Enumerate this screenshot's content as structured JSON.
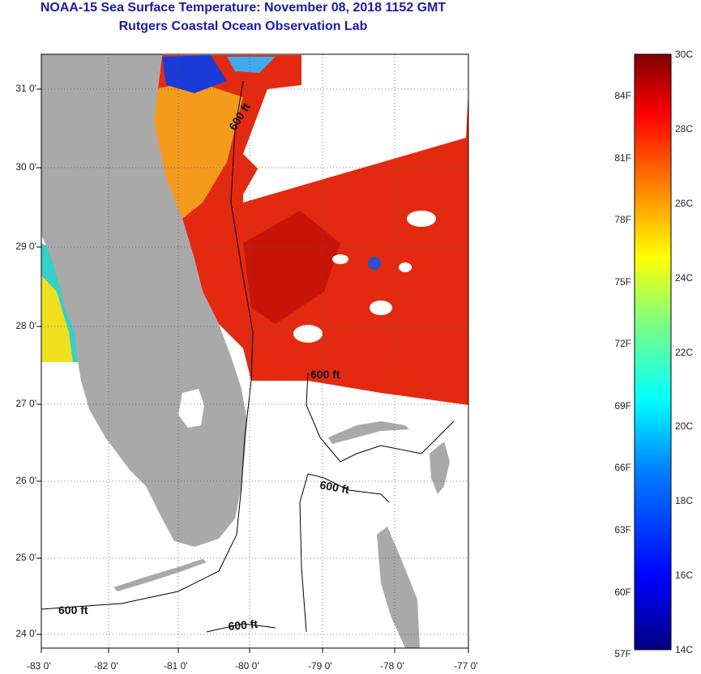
{
  "title": "NOAA-15 Sea Surface Temperature:  November 08, 2018 1152 GMT",
  "subtitle": "Rutgers Coastal Ocean Observation Lab",
  "axes": {
    "lat_labels": [
      "31 0'",
      "30 0'",
      "29 0'",
      "28 0'",
      "27 0'",
      "26 0'",
      "25 0'",
      "24 0'"
    ],
    "lon_labels": [
      "-83 0'",
      "-82 0'",
      "-81 0'",
      "-80 0'",
      "-79 0'",
      "-78 0'",
      "-77 0'"
    ]
  },
  "contour_labels": [
    "600 ft",
    "600 ft",
    "600 ft",
    "600 ft",
    "600 ft"
  ],
  "colorbar": {
    "celsius_labels": [
      "30C",
      "28C",
      "26C",
      "24C",
      "22C",
      "20C",
      "18C",
      "16C",
      "14C"
    ],
    "fahrenheit_labels": [
      "84F",
      "81F",
      "78F",
      "75F",
      "72F",
      "69F",
      "66F",
      "63F",
      "60F",
      "57F"
    ],
    "range_c": [
      14,
      30
    ],
    "colors": [
      "#00007f",
      "#0000ff",
      "#007fff",
      "#00ffff",
      "#7fff7f",
      "#ffff00",
      "#ff7f00",
      "#ff0000",
      "#7f0000"
    ]
  },
  "colors": {
    "title": "#1a1aa8",
    "land": "#a9a9a9",
    "sst_warm": "#e8200a",
    "cloud": "#ffffff"
  }
}
